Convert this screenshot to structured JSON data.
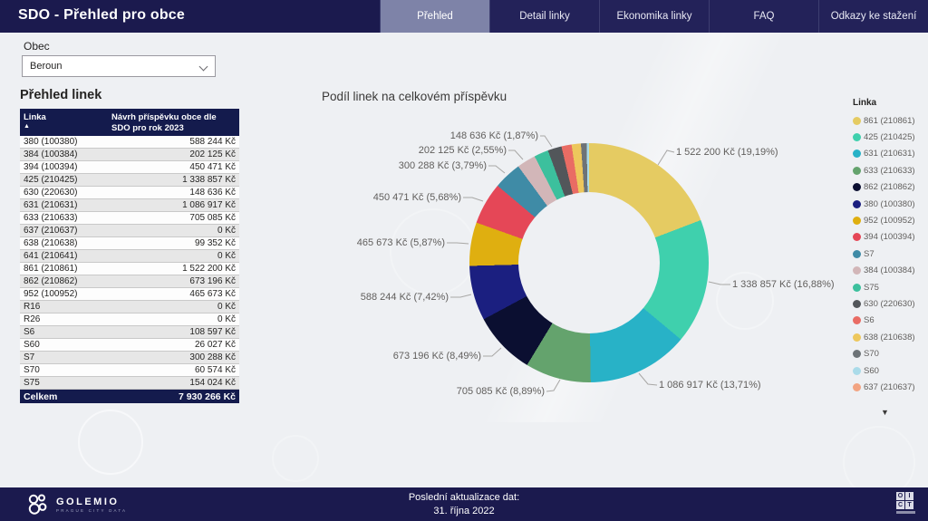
{
  "header": {
    "title": "SDO - Přehled pro obce",
    "tabs": [
      {
        "label": "Přehled",
        "slug": "prehled",
        "active": true
      },
      {
        "label": "Detail linky",
        "slug": "detail-linky",
        "active": false
      },
      {
        "label": "Ekonomika linky",
        "slug": "ekonomika-linky",
        "active": false
      },
      {
        "label": "FAQ",
        "slug": "faq",
        "active": false
      },
      {
        "label": "Odkazy ke stažení",
        "slug": "odkazy-ke-stazeni",
        "active": false
      }
    ]
  },
  "filters": {
    "obec_label": "Obec",
    "obec_value": "Beroun"
  },
  "table": {
    "title": "Přehled linek",
    "columns": [
      "Linka",
      "Návrh příspěvku obce dle SDO pro rok 2023"
    ],
    "sort_indicator": "▲",
    "rows": [
      [
        "380 (100380)",
        "588 244 Kč"
      ],
      [
        "384 (100384)",
        "202 125 Kč"
      ],
      [
        "394 (100394)",
        "450 471 Kč"
      ],
      [
        "425 (210425)",
        "1 338 857 Kč"
      ],
      [
        "630 (220630)",
        "148 636 Kč"
      ],
      [
        "631 (210631)",
        "1 086 917 Kč"
      ],
      [
        "633 (210633)",
        "705 085 Kč"
      ],
      [
        "637 (210637)",
        "0 Kč"
      ],
      [
        "638 (210638)",
        "99 352 Kč"
      ],
      [
        "641 (210641)",
        "0 Kč"
      ],
      [
        "861 (210861)",
        "1 522 200 Kč"
      ],
      [
        "862 (210862)",
        "673 196 Kč"
      ],
      [
        "952 (100952)",
        "465 673 Kč"
      ],
      [
        "R16",
        "0 Kč"
      ],
      [
        "R26",
        "0 Kč"
      ],
      [
        "S6",
        "108 597 Kč"
      ],
      [
        "S60",
        "26 027 Kč"
      ],
      [
        "S7",
        "300 288 Kč"
      ],
      [
        "S70",
        "60 574 Kč"
      ],
      [
        "S75",
        "154 024 Kč"
      ]
    ],
    "total": {
      "label": "Celkem",
      "value": "7 930 266 Kč"
    }
  },
  "chart_data": {
    "type": "pie",
    "subtype": "donut",
    "title": "Podíl linek na celkovém příspěvku",
    "legend_title": "Linka",
    "legend_position": "right",
    "total_kc": 7930266,
    "slices": [
      {
        "label": "861 (210861)",
        "value": 1522200,
        "percent": 19.19,
        "color": "#e5cb62",
        "callout": "1 522 200 Kč (19,19%)"
      },
      {
        "label": "425 (210425)",
        "value": 1338857,
        "percent": 16.88,
        "color": "#3fd0ad",
        "callout": "1 338 857 Kč (16,88%)"
      },
      {
        "label": "631 (210631)",
        "value": 1086917,
        "percent": 13.71,
        "color": "#28b2c7",
        "callout": "1 086 917 Kč (13,71%)"
      },
      {
        "label": "633 (210633)",
        "value": 705085,
        "percent": 8.89,
        "color": "#64a36d",
        "callout": "705 085 Kč (8,89%)"
      },
      {
        "label": "862 (210862)",
        "value": 673196,
        "percent": 8.49,
        "color": "#0b0f31",
        "callout": "673 196 Kč (8,49%)"
      },
      {
        "label": "380 (100380)",
        "value": 588244,
        "percent": 7.42,
        "color": "#1b1f80",
        "callout": "588 244 Kč (7,42%)"
      },
      {
        "label": "952 (100952)",
        "value": 465673,
        "percent": 5.87,
        "color": "#dfaf10",
        "callout": "465 673 Kč (5,87%)"
      },
      {
        "label": "394 (100394)",
        "value": 450471,
        "percent": 5.68,
        "color": "#e54757",
        "callout": "450 471 Kč (5,68%)"
      },
      {
        "label": "S7",
        "value": 300288,
        "percent": 3.79,
        "color": "#3f8ba6",
        "callout": "300 288 Kč (3,79%)"
      },
      {
        "label": "384 (100384)",
        "value": 202125,
        "percent": 2.55,
        "color": "#d2b6b8",
        "callout": "202 125 Kč (2,55%)"
      },
      {
        "label": "S75",
        "value": 154024,
        "percent": 1.94,
        "color": "#3cc09d",
        "callout": null
      },
      {
        "label": "630 (220630)",
        "value": 148636,
        "percent": 1.87,
        "color": "#52565a",
        "callout": "148 636 Kč (1,87%)"
      },
      {
        "label": "S6",
        "value": 108597,
        "percent": 1.37,
        "color": "#e96c64",
        "callout": null
      },
      {
        "label": "638 (210638)",
        "value": 99352,
        "percent": 1.25,
        "color": "#edc75c",
        "callout": null
      },
      {
        "label": "S70",
        "value": 60574,
        "percent": 0.76,
        "color": "#6d7377",
        "callout": null
      },
      {
        "label": "S60",
        "value": 26027,
        "percent": 0.33,
        "color": "#aadbe9",
        "callout": null
      },
      {
        "label": "637 (210637)",
        "value": 0,
        "percent": 0.0,
        "color": "#f2a482",
        "callout": null
      }
    ],
    "scroll_more_icon": "▼"
  },
  "footer": {
    "brand": "GOLEMIO",
    "brand_sub": "PRAGUE CITY DATA",
    "updated_label": "Poslední aktualizace dat:",
    "updated_value": "31. října 2022",
    "oict_letters": [
      "O",
      "I",
      "C",
      "T"
    ]
  }
}
